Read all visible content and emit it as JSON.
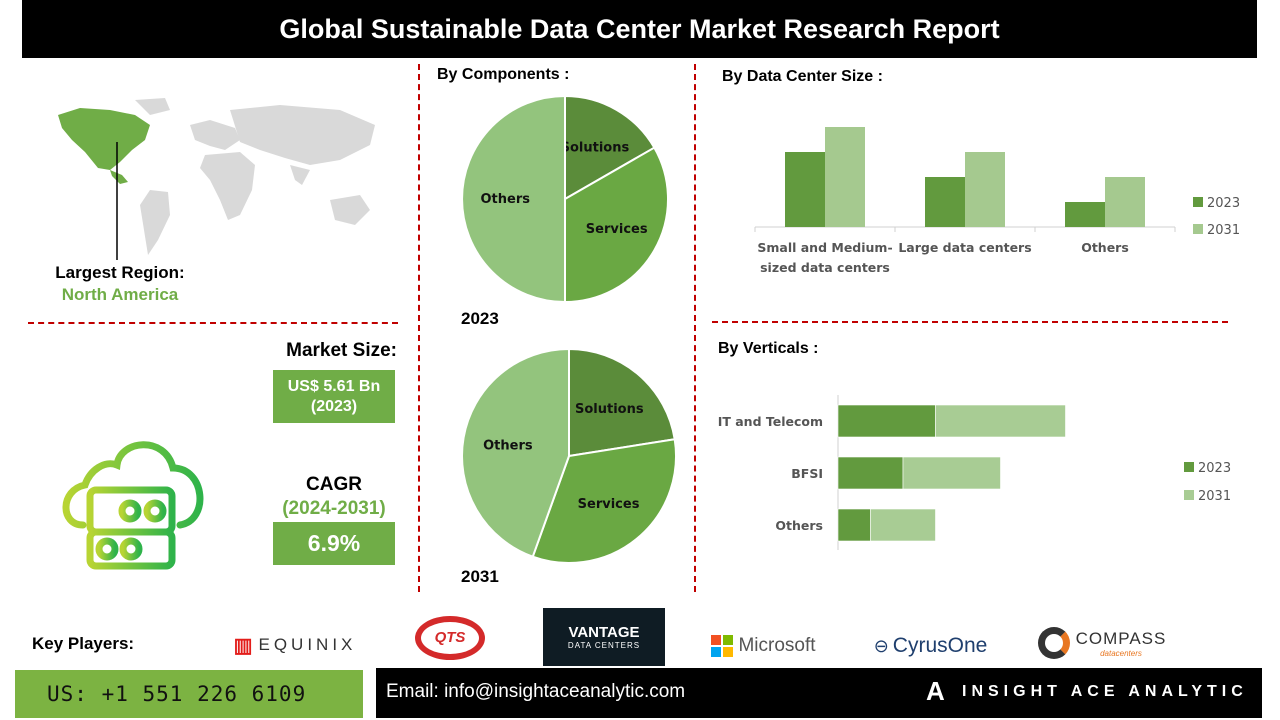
{
  "title": "Global Sustainable Data Center Market Research Report",
  "region": {
    "label": "Largest Region:",
    "value": "North America"
  },
  "market_size": {
    "label": "Market Size:",
    "value": "US$ 5.61 Bn",
    "year": "(2023)"
  },
  "cagr": {
    "label": "CAGR",
    "period": "(2024-2031)",
    "value": "6.9%"
  },
  "colors": {
    "accent": "#70ad47",
    "dark_green": "#629a3e",
    "light_green": "#a5c98f",
    "divider": "#c00000"
  },
  "chart_data": [
    {
      "type": "pie",
      "title": "By Components :",
      "caption": "2023",
      "categories": [
        "Solutions",
        "Services",
        "Others"
      ],
      "values": [
        16.7,
        33.3,
        50
      ],
      "colors": [
        "#5b8c3a",
        "#6aa843",
        "#93c47d"
      ]
    },
    {
      "type": "pie",
      "caption": "2031",
      "categories": [
        "Solutions",
        "Services",
        "Others"
      ],
      "values": [
        22.5,
        33,
        44.5
      ],
      "colors": [
        "#5b8c3a",
        "#6aa843",
        "#93c47d"
      ]
    },
    {
      "type": "bar",
      "title": "By Data Center Size :",
      "categories": [
        "Small and Medium-sized data centers",
        "Large data centers",
        "Others"
      ],
      "series": [
        {
          "name": "2023",
          "values": [
            3,
            2,
            1
          ],
          "color": "#629a3e"
        },
        {
          "name": "2031",
          "values": [
            4,
            3,
            2
          ],
          "color": "#a5c98f"
        }
      ],
      "ylim": [
        0,
        4
      ],
      "grid": false,
      "legend": "right"
    },
    {
      "type": "bar",
      "orientation": "horizontal-stacked",
      "title": "By Verticals :",
      "categories": [
        "IT and Telecom",
        "BFSI",
        "Others"
      ],
      "series": [
        {
          "name": "2023",
          "values": [
            3,
            2,
            1
          ],
          "color": "#629a3e"
        },
        {
          "name": "2031",
          "values": [
            4,
            3,
            2
          ],
          "color": "#a8cc94"
        }
      ],
      "grid": false,
      "legend": "right"
    }
  ],
  "footer": {
    "key_players_label": "Key Players:",
    "players": [
      "EQUINIX",
      "QTS",
      "VANTAGE",
      "DATA CENTERS",
      "Microsoft",
      "CyrusOne",
      "COMPASS",
      "datacenters"
    ],
    "phone": "US: +1 551 226 6109",
    "email": "Email: info@insightaceanalytic.com",
    "brand": "INSIGHT ACE ANALYTIC"
  }
}
